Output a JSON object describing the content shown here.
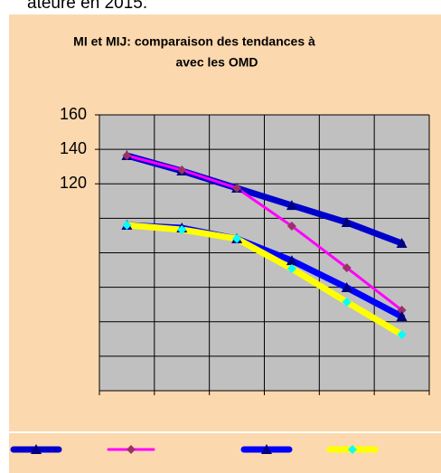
{
  "caption": "ateure en 2015.",
  "chart_data": {
    "type": "line",
    "title": [
      "MI et MIJ: comparaison des tendances à",
      "avec les OMD"
    ],
    "categories": [
      null,
      null,
      null,
      null,
      null,
      null
    ],
    "ylim": [
      0,
      160
    ],
    "yticks": [
      120,
      140,
      160
    ],
    "grid": true,
    "series": [
      {
        "color": "#0000cc",
        "width": 7,
        "marker": "triangle",
        "marker_color": "#000080",
        "values": [
          136.4,
          127.5,
          117.5,
          107.5,
          97.6,
          85.5
        ]
      },
      {
        "color": "#ff00ff",
        "width": 3,
        "marker": "diamond",
        "marker_color": "#993366",
        "values": [
          136.4,
          128.0,
          117.5,
          95.5,
          71.3,
          46.7
        ]
      },
      {
        "color": "#0000ff",
        "width": 7,
        "marker": "triangle",
        "marker_color": "#000080",
        "values": [
          96.0,
          94.4,
          88.1,
          75.5,
          59.8,
          43.0
        ]
      },
      {
        "color": "#ffff00",
        "width": 7,
        "marker": "diamond",
        "marker_color": "#00ffff",
        "values": [
          96.0,
          93.4,
          88.1,
          70.8,
          51.4,
          32.5
        ]
      }
    ]
  }
}
